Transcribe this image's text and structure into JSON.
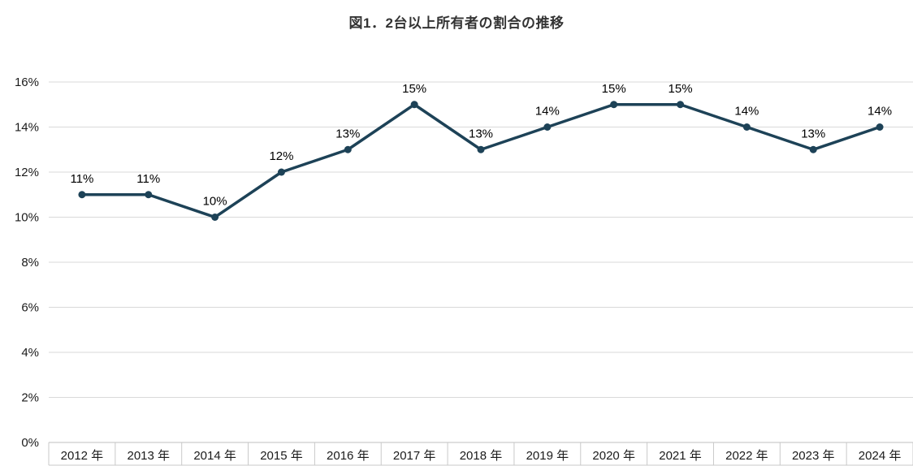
{
  "chart_data": {
    "type": "line",
    "title": "図1．2台以上所有者の割合の推移",
    "categories": [
      "2012 年",
      "2013 年",
      "2014 年",
      "2015 年",
      "2016 年",
      "2017 年",
      "2018 年",
      "2019 年",
      "2020 年",
      "2021 年",
      "2022 年",
      "2023 年",
      "2024 年"
    ],
    "values": [
      11,
      11,
      10,
      12,
      13,
      15,
      13,
      14,
      15,
      15,
      14,
      13,
      14
    ],
    "data_labels": [
      "11%",
      "11%",
      "10%",
      "12%",
      "13%",
      "15%",
      "13%",
      "14%",
      "15%",
      "15%",
      "14%",
      "13%",
      "14%"
    ],
    "xlabel": "",
    "ylabel": "",
    "ylim": [
      0,
      16
    ],
    "y_tick_step": 2,
    "y_tick_labels": [
      "0%",
      "2%",
      "4%",
      "6%",
      "8%",
      "10%",
      "12%",
      "14%",
      "16%"
    ],
    "grid": true,
    "legend": "none",
    "marker": "circle",
    "colors": {
      "series": "#1d4257",
      "gridline": "#d9d9d9",
      "axis_line": "#bfbfbf",
      "tick_line": "#c9c9c9",
      "label_text": "#1a1a1a",
      "title_text": "#333333"
    }
  }
}
